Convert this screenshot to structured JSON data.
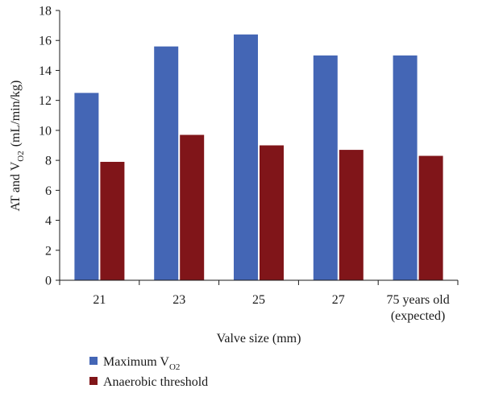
{
  "chart_data": {
    "type": "bar",
    "categories": [
      "21",
      "23",
      "25",
      "27",
      "75 years old\n(expected)"
    ],
    "series": [
      {
        "name": "Maximum V",
        "name_sub": "O2",
        "color": "#4466b5",
        "values": [
          12.5,
          15.6,
          16.4,
          15.0,
          15.0
        ]
      },
      {
        "name": "Anaerobic threshold",
        "color": "#801519",
        "values": [
          7.9,
          9.7,
          9.0,
          8.7,
          8.3
        ]
      }
    ],
    "xlabel": "Valve size (mm)",
    "ylabel": "AT and V",
    "ylabel_sub": "O2",
    "ylabel_unit": "(mL/min/kg)",
    "ylim": [
      0,
      18
    ],
    "yticks": [
      0,
      2,
      4,
      6,
      8,
      10,
      12,
      14,
      16,
      18
    ],
    "grid": false,
    "legend": "bottom-left"
  }
}
